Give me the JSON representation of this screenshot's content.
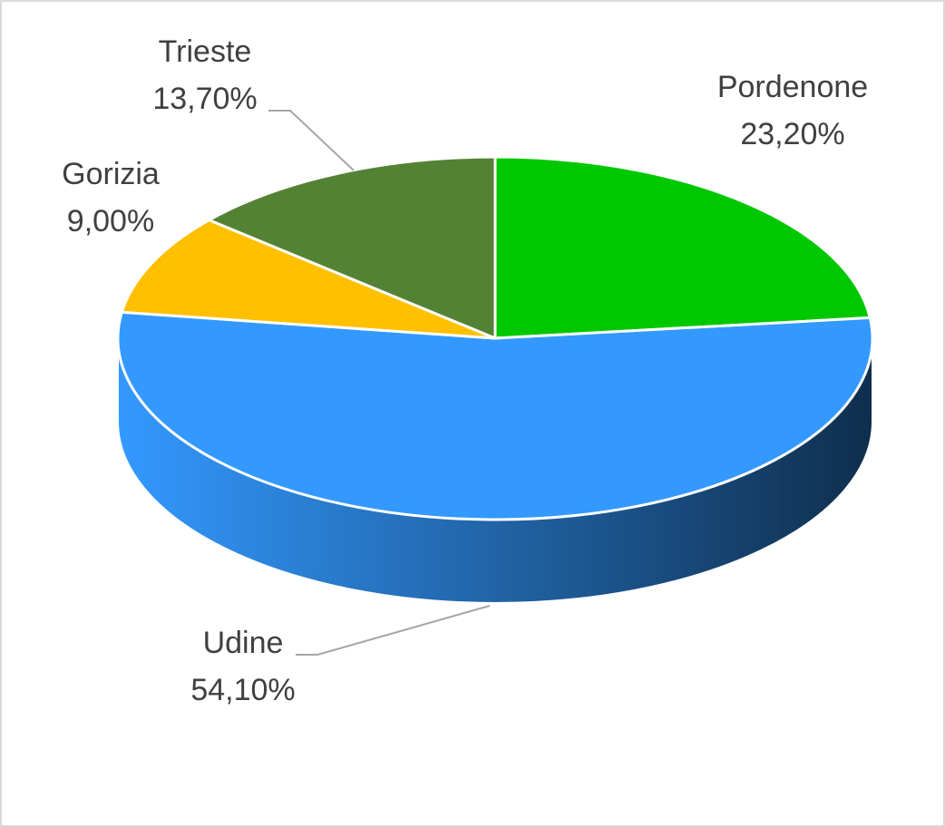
{
  "chart_data": {
    "type": "pie",
    "categories": [
      "Pordenone",
      "Udine",
      "Gorizia",
      "Trieste"
    ],
    "values": [
      23.2,
      54.1,
      9.0,
      13.7
    ],
    "value_labels": [
      "23,20%",
      "54,10%",
      "9,00%",
      "13,70%"
    ],
    "colors": [
      "#00c800",
      "#3399ff",
      "#ffc000",
      "#548235"
    ]
  }
}
